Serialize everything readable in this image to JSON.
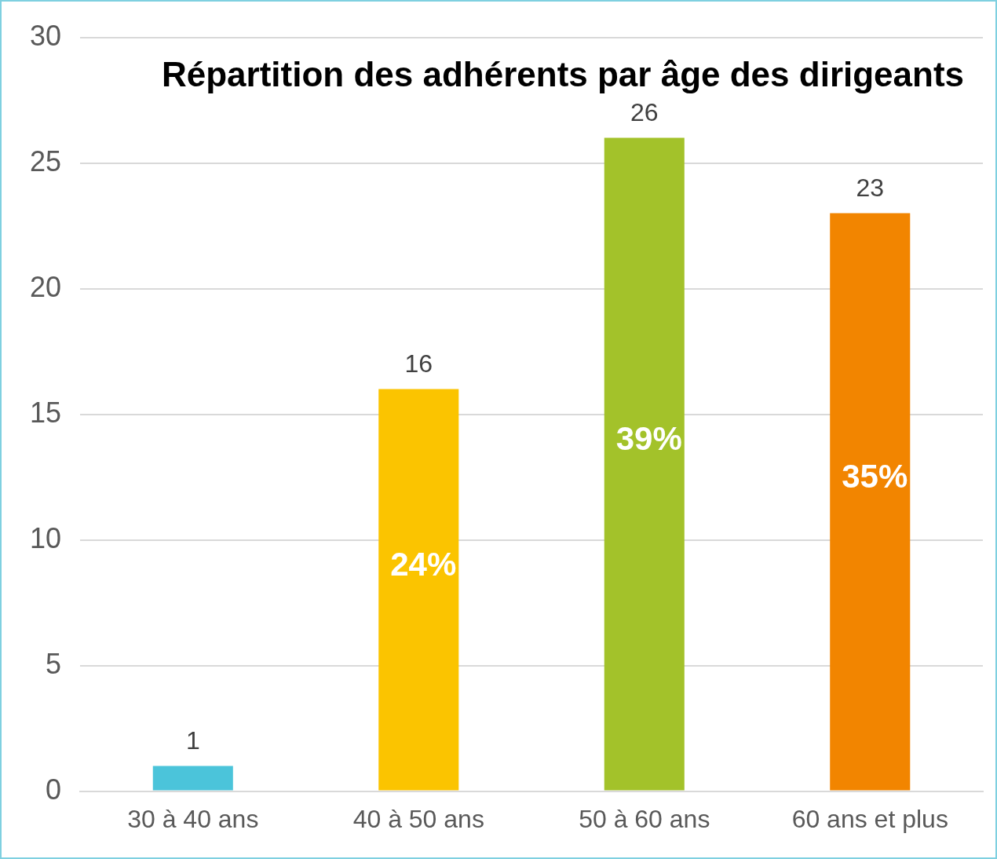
{
  "chart_data": {
    "type": "bar",
    "title": "Répartition des adhérents par âge des dirigeants",
    "categories": [
      "30 à 40 ans",
      "40 à 50 ans",
      "50 à 60 ans",
      "60 ans et plus"
    ],
    "values": [
      1,
      16,
      26,
      23
    ],
    "colors": [
      "#4bc4da",
      "#fbc400",
      "#a3c22a",
      "#f28500"
    ],
    "ylim": [
      0,
      30
    ],
    "yticks": [
      0,
      5,
      10,
      15,
      20,
      25,
      30
    ],
    "grid": "y",
    "data_labels": true,
    "annotations": [
      "24%",
      "39%",
      "35%"
    ]
  }
}
